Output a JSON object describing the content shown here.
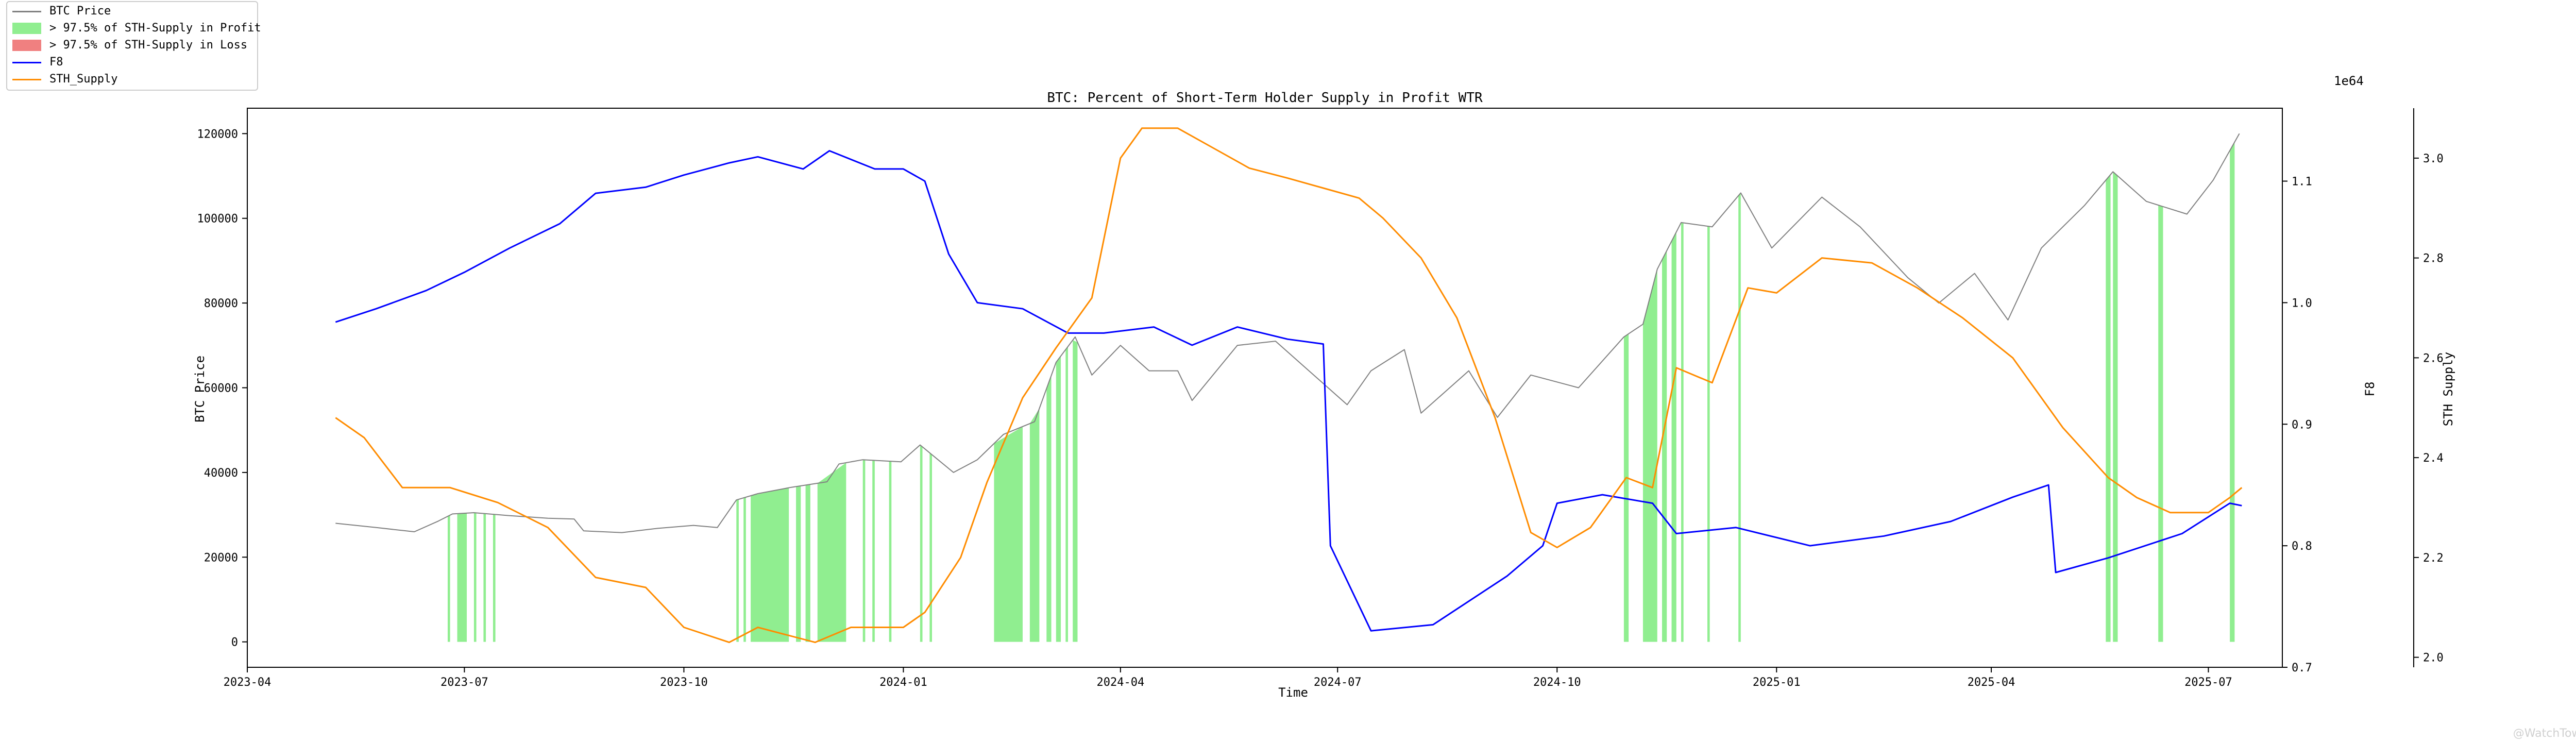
{
  "chart_data": {
    "type": "line",
    "title": "BTC: Percent of Short-Term Holder Supply in Profit WTR",
    "xlabel": "Time",
    "ylabel_left": "BTC Price",
    "ylabel_right1": "F8",
    "ylabel_right2": "STH Supply",
    "offset_label_right2": "1e64",
    "x_ticks": [
      "2023-04",
      "2023-07",
      "2023-10",
      "2024-01",
      "2024-04",
      "2024-07",
      "2024-10",
      "2025-01",
      "2025-04",
      "2025-07"
    ],
    "x_range": [
      "2023-04-01",
      "2025-08-01"
    ],
    "y_left_range": [
      -6000,
      126000
    ],
    "y_left_ticks": [
      "0",
      "20000",
      "40000",
      "60000",
      "80000",
      "100000",
      "120000"
    ],
    "y_f8_range": [
      0.7,
      1.16
    ],
    "y_f8_ticks": [
      "0.7",
      "0.8",
      "0.9",
      "1.0",
      "1.1"
    ],
    "y_sth_range": [
      1.98,
      3.1
    ],
    "y_sth_ticks": [
      "2.0",
      "2.2",
      "2.4",
      "2.6",
      "2.8",
      "3.0"
    ],
    "legend": {
      "placement": "top-left",
      "entries": [
        "BTC Price",
        "> 97.5% of STH-Supply in Profit",
        "> 97.5% of STH-Supply in Loss",
        "F8",
        "STH_Supply"
      ]
    },
    "colors": {
      "price": "#808080",
      "profit": "#90ee90",
      "loss": "#f08080",
      "f8": "#0000ff",
      "sth": "#ff8c00"
    },
    "series": [
      {
        "name": "BTC Price",
        "axis": "left",
        "points": [
          [
            "2023-05-08",
            28000
          ],
          [
            "2023-05-25",
            27000
          ],
          [
            "2023-06-10",
            26000
          ],
          [
            "2023-06-20",
            28500
          ],
          [
            "2023-06-26",
            30200
          ],
          [
            "2023-07-05",
            30500
          ],
          [
            "2023-07-20",
            29800
          ],
          [
            "2023-08-05",
            29200
          ],
          [
            "2023-08-16",
            29000
          ],
          [
            "2023-08-20",
            26200
          ],
          [
            "2023-09-05",
            25800
          ],
          [
            "2023-09-20",
            26800
          ],
          [
            "2023-10-05",
            27500
          ],
          [
            "2023-10-15",
            27000
          ],
          [
            "2023-10-23",
            33500
          ],
          [
            "2023-11-01",
            35000
          ],
          [
            "2023-11-15",
            36500
          ],
          [
            "2023-11-30",
            37800
          ],
          [
            "2023-12-05",
            42000
          ],
          [
            "2023-12-15",
            43000
          ],
          [
            "2023-12-31",
            42500
          ],
          [
            "2024-01-08",
            46500
          ],
          [
            "2024-01-22",
            40000
          ],
          [
            "2024-02-01",
            43000
          ],
          [
            "2024-02-12",
            49000
          ],
          [
            "2024-02-25",
            52000
          ],
          [
            "2024-03-05",
            66000
          ],
          [
            "2024-03-13",
            72000
          ],
          [
            "2024-03-20",
            63000
          ],
          [
            "2024-04-01",
            70000
          ],
          [
            "2024-04-13",
            64000
          ],
          [
            "2024-04-25",
            64000
          ],
          [
            "2024-05-01",
            57000
          ],
          [
            "2024-05-20",
            70000
          ],
          [
            "2024-06-05",
            71000
          ],
          [
            "2024-06-25",
            61000
          ],
          [
            "2024-07-05",
            56000
          ],
          [
            "2024-07-15",
            64000
          ],
          [
            "2024-07-29",
            69000
          ],
          [
            "2024-08-05",
            54000
          ],
          [
            "2024-08-25",
            64000
          ],
          [
            "2024-09-06",
            53000
          ],
          [
            "2024-09-20",
            63000
          ],
          [
            "2024-10-10",
            60000
          ],
          [
            "2024-10-29",
            72000
          ],
          [
            "2024-11-06",
            75000
          ],
          [
            "2024-11-12",
            88000
          ],
          [
            "2024-11-22",
            99000
          ],
          [
            "2024-12-05",
            98000
          ],
          [
            "2024-12-17",
            106000
          ],
          [
            "2024-12-30",
            93000
          ],
          [
            "2025-01-20",
            105000
          ],
          [
            "2025-02-05",
            98000
          ],
          [
            "2025-02-25",
            86000
          ],
          [
            "2025-03-10",
            80000
          ],
          [
            "2025-03-25",
            87000
          ],
          [
            "2025-04-08",
            76000
          ],
          [
            "2025-04-22",
            93000
          ],
          [
            "2025-05-10",
            103000
          ],
          [
            "2025-05-22",
            111000
          ],
          [
            "2025-06-05",
            104000
          ],
          [
            "2025-06-22",
            101000
          ],
          [
            "2025-07-03",
            109000
          ],
          [
            "2025-07-10",
            116000
          ],
          [
            "2025-07-14",
            120000
          ]
        ]
      },
      {
        "name": "F8",
        "axis": "f8",
        "points": [
          [
            "2023-05-08",
            0.984
          ],
          [
            "2023-05-25",
            0.995
          ],
          [
            "2023-06-15",
            1.01
          ],
          [
            "2023-07-01",
            1.025
          ],
          [
            "2023-07-20",
            1.045
          ],
          [
            "2023-08-10",
            1.065
          ],
          [
            "2023-08-25",
            1.09
          ],
          [
            "2023-09-15",
            1.095
          ],
          [
            "2023-10-01",
            1.105
          ],
          [
            "2023-10-20",
            1.115
          ],
          [
            "2023-11-01",
            1.12
          ],
          [
            "2023-11-20",
            1.11
          ],
          [
            "2023-12-01",
            1.125
          ],
          [
            "2023-12-20",
            1.11
          ],
          [
            "2024-01-01",
            1.11
          ],
          [
            "2024-01-10",
            1.1
          ],
          [
            "2024-01-20",
            1.04
          ],
          [
            "2024-02-01",
            1.0
          ],
          [
            "2024-02-20",
            0.995
          ],
          [
            "2024-03-10",
            0.975
          ],
          [
            "2024-03-25",
            0.975
          ],
          [
            "2024-04-15",
            0.98
          ],
          [
            "2024-05-01",
            0.965
          ],
          [
            "2024-05-20",
            0.98
          ],
          [
            "2024-06-10",
            0.97
          ],
          [
            "2024-06-25",
            0.966
          ],
          [
            "2024-06-28",
            0.8
          ],
          [
            "2024-07-15",
            0.73
          ],
          [
            "2024-08-10",
            0.735
          ],
          [
            "2024-09-10",
            0.775
          ],
          [
            "2024-09-25",
            0.8
          ],
          [
            "2024-10-01",
            0.835
          ],
          [
            "2024-10-20",
            0.842
          ],
          [
            "2024-11-10",
            0.835
          ],
          [
            "2024-11-20",
            0.81
          ],
          [
            "2024-12-15",
            0.815
          ],
          [
            "2025-01-15",
            0.8
          ],
          [
            "2025-02-15",
            0.808
          ],
          [
            "2025-03-15",
            0.82
          ],
          [
            "2025-04-10",
            0.84
          ],
          [
            "2025-04-25",
            0.85
          ],
          [
            "2025-04-28",
            0.778
          ],
          [
            "2025-05-20",
            0.79
          ],
          [
            "2025-06-20",
            0.81
          ],
          [
            "2025-07-10",
            0.835
          ],
          [
            "2025-07-15",
            0.833
          ]
        ]
      },
      {
        "name": "STH_Supply",
        "axis": "sth",
        "points": [
          [
            "2023-05-08",
            2.48
          ],
          [
            "2023-05-20",
            2.44
          ],
          [
            "2023-06-05",
            2.34
          ],
          [
            "2023-06-25",
            2.34
          ],
          [
            "2023-07-15",
            2.31
          ],
          [
            "2023-08-05",
            2.26
          ],
          [
            "2023-08-25",
            2.16
          ],
          [
            "2023-09-15",
            2.14
          ],
          [
            "2023-10-01",
            2.06
          ],
          [
            "2023-10-20",
            2.03
          ],
          [
            "2023-11-01",
            2.06
          ],
          [
            "2023-11-25",
            2.03
          ],
          [
            "2023-12-10",
            2.06
          ],
          [
            "2024-01-01",
            2.06
          ],
          [
            "2024-01-10",
            2.09
          ],
          [
            "2024-01-25",
            2.2
          ],
          [
            "2024-02-05",
            2.35
          ],
          [
            "2024-02-20",
            2.52
          ],
          [
            "2024-03-05",
            2.62
          ],
          [
            "2024-03-20",
            2.72
          ],
          [
            "2024-04-01",
            3.0
          ],
          [
            "2024-04-10",
            3.06
          ],
          [
            "2024-04-25",
            3.06
          ],
          [
            "2024-05-10",
            3.02
          ],
          [
            "2024-05-25",
            2.98
          ],
          [
            "2024-06-10",
            2.96
          ],
          [
            "2024-06-25",
            2.94
          ],
          [
            "2024-07-10",
            2.92
          ],
          [
            "2024-07-20",
            2.88
          ],
          [
            "2024-08-05",
            2.8
          ],
          [
            "2024-08-20",
            2.68
          ],
          [
            "2024-09-05",
            2.48
          ],
          [
            "2024-09-20",
            2.25
          ],
          [
            "2024-10-01",
            2.22
          ],
          [
            "2024-10-15",
            2.26
          ],
          [
            "2024-10-30",
            2.36
          ],
          [
            "2024-11-10",
            2.34
          ],
          [
            "2024-11-20",
            2.58
          ],
          [
            "2024-12-05",
            2.55
          ],
          [
            "2024-12-20",
            2.74
          ],
          [
            "2025-01-01",
            2.73
          ],
          [
            "2025-01-20",
            2.8
          ],
          [
            "2025-02-10",
            2.79
          ],
          [
            "2025-03-01",
            2.74
          ],
          [
            "2025-03-20",
            2.68
          ],
          [
            "2025-04-10",
            2.6
          ],
          [
            "2025-05-01",
            2.46
          ],
          [
            "2025-05-20",
            2.36
          ],
          [
            "2025-06-01",
            2.32
          ],
          [
            "2025-06-15",
            2.29
          ],
          [
            "2025-07-01",
            2.29
          ],
          [
            "2025-07-10",
            2.32
          ],
          [
            "2025-07-15",
            2.34
          ]
        ]
      },
      {
        "name": "> 97.5% of STH-Supply in Profit",
        "axis": "left",
        "spans": [
          [
            "2023-06-24",
            "2023-06-25"
          ],
          [
            "2023-06-28",
            "2023-07-02"
          ],
          [
            "2023-07-05",
            "2023-07-06"
          ],
          [
            "2023-07-09",
            "2023-07-10"
          ],
          [
            "2023-07-13",
            "2023-07-14"
          ],
          [
            "2023-10-23",
            "2023-10-24"
          ],
          [
            "2023-10-26",
            "2023-10-27"
          ],
          [
            "2023-10-29",
            "2023-11-14"
          ],
          [
            "2023-11-17",
            "2023-11-19"
          ],
          [
            "2023-11-21",
            "2023-11-23"
          ],
          [
            "2023-11-26",
            "2023-12-08"
          ],
          [
            "2023-12-15",
            "2023-12-16"
          ],
          [
            "2023-12-19",
            "2023-12-20"
          ],
          [
            "2023-12-26",
            "2023-12-27"
          ],
          [
            "2024-01-08",
            "2024-01-09"
          ],
          [
            "2024-01-12",
            "2024-01-13"
          ],
          [
            "2024-02-08",
            "2024-02-20"
          ],
          [
            "2024-02-23",
            "2024-02-27"
          ],
          [
            "2024-03-01",
            "2024-03-03"
          ],
          [
            "2024-03-05",
            "2024-03-07"
          ],
          [
            "2024-03-09",
            "2024-03-10"
          ],
          [
            "2024-03-12",
            "2024-03-14"
          ],
          [
            "2024-10-29",
            "2024-10-31"
          ],
          [
            "2024-11-06",
            "2024-11-12"
          ],
          [
            "2024-11-14",
            "2024-11-16"
          ],
          [
            "2024-11-18",
            "2024-11-20"
          ],
          [
            "2024-11-22",
            "2024-11-23"
          ],
          [
            "2024-12-03",
            "2024-12-04"
          ],
          [
            "2024-12-16",
            "2024-12-17"
          ],
          [
            "2025-05-19",
            "2025-05-21"
          ],
          [
            "2025-05-22",
            "2025-05-24"
          ],
          [
            "2025-06-10",
            "2025-06-12"
          ],
          [
            "2025-07-10",
            "2025-07-12"
          ]
        ]
      },
      {
        "name": "> 97.5% of STH-Supply in Loss",
        "axis": "left",
        "spans": []
      }
    ]
  },
  "watermark": "@WatchTower"
}
